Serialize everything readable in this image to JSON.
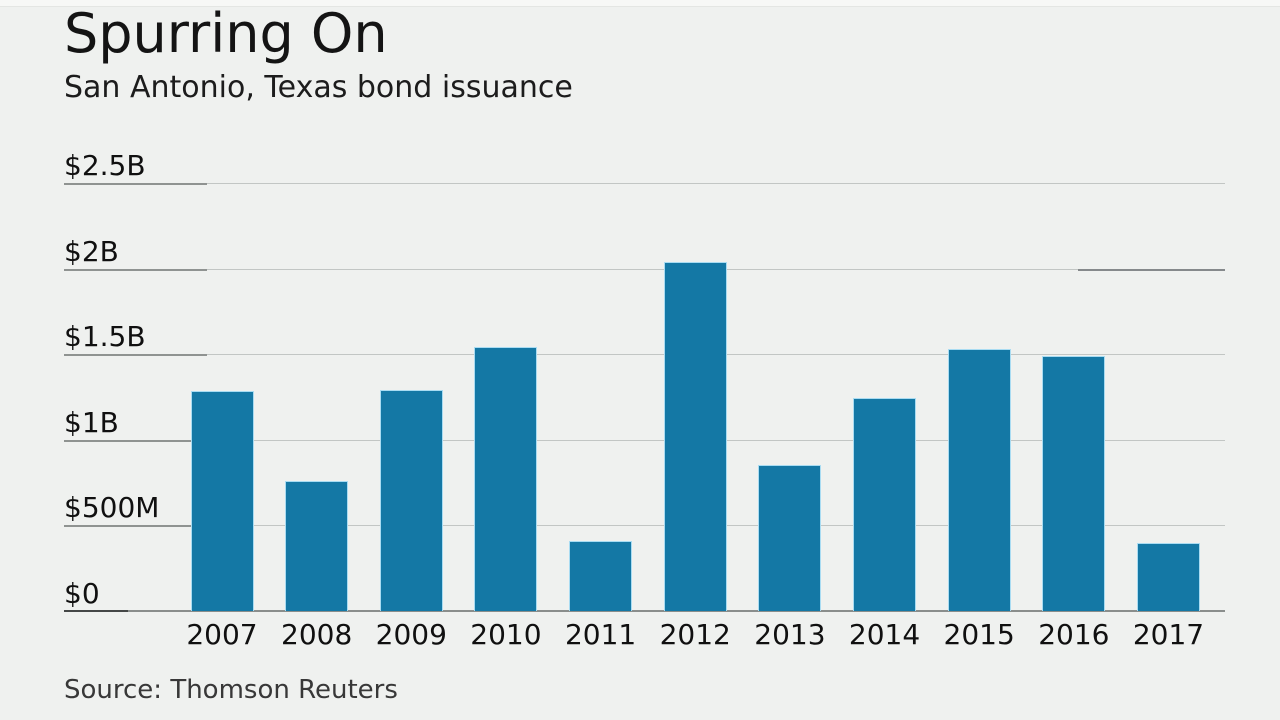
{
  "header": {
    "title": "Spurring On",
    "subtitle": "San Antonio, Texas bond issuance"
  },
  "footer": {
    "source": "Source: Thomson Reuters"
  },
  "chart_data": {
    "type": "bar",
    "title": "Spurring On",
    "subtitle": "San Antonio, Texas bond issuance",
    "source": "Source: Thomson Reuters",
    "xlabel": "",
    "ylabel": "",
    "unit": "USD millions",
    "categories": [
      "2007",
      "2008",
      "2009",
      "2010",
      "2011",
      "2012",
      "2013",
      "2014",
      "2015",
      "2016",
      "2017"
    ],
    "values_musd": [
      1285,
      760,
      1290,
      1540,
      410,
      2040,
      855,
      1245,
      1530,
      1490,
      400
    ],
    "ylim": [
      0,
      2500
    ],
    "yticks": [
      {
        "label": "$2.5B",
        "value": 2500
      },
      {
        "label": "$2B",
        "value": 2000
      },
      {
        "label": "$1.5B",
        "value": 1500
      },
      {
        "label": "$1B",
        "value": 1000
      },
      {
        "label": "$500M",
        "value": 500
      },
      {
        "label": "$0",
        "value": 0
      }
    ],
    "grid": true,
    "legend": false,
    "colors": {
      "bar": "#1478a5",
      "bar_edge": "#a9dcf2",
      "background": "#eff1ef",
      "gridline": "#c2c6c4",
      "gridline_dark": "#8f9391",
      "baseline": "#8a8e8c",
      "baseline_dark": "#454847",
      "text": "#101010",
      "source_text": "#383838"
    }
  }
}
